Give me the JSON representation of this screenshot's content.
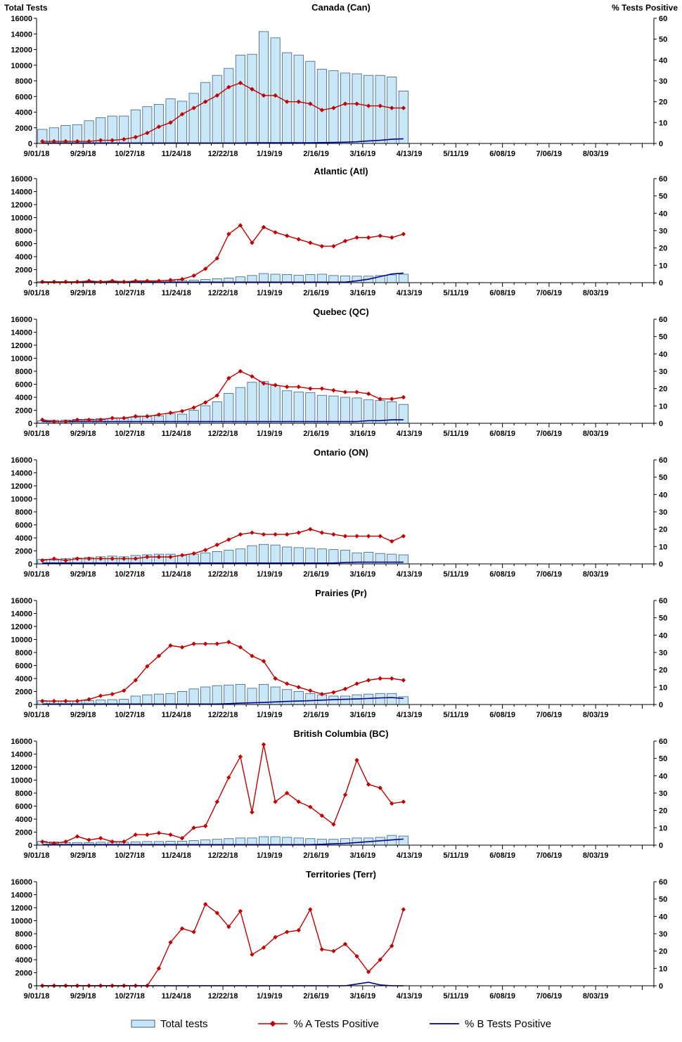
{
  "legend": {
    "total_tests": "Total tests",
    "pct_a": "% A Tests Positive",
    "pct_b": "% B Tests Positive"
  },
  "colors": {
    "bar_fill": "#c9e7f7",
    "bar_stroke": "#3a6186",
    "line_a": "#c00000",
    "line_b": "#00008b",
    "axis": "#000000"
  },
  "chart_data": {
    "type": "combo-bar-line",
    "x_total_slots": 53,
    "x_tick_labels": [
      "9/01/18",
      "9/29/18",
      "10/27/18",
      "11/24/18",
      "12/22/18",
      "1/19/19",
      "2/16/19",
      "3/16/19",
      "4/13/19",
      "5/11/19",
      "6/08/19",
      "7/06/19",
      "8/03/19"
    ],
    "x_week_dates": [
      "9/01/18",
      "9/08/18",
      "9/15/18",
      "9/22/18",
      "9/29/18",
      "10/06/18",
      "10/13/18",
      "10/20/18",
      "10/27/18",
      "11/03/18",
      "11/10/18",
      "11/17/18",
      "11/24/18",
      "12/01/18",
      "12/08/18",
      "12/15/18",
      "12/22/18",
      "12/29/18",
      "1/05/19",
      "1/12/19",
      "1/19/19",
      "1/26/19",
      "2/02/19",
      "2/09/19",
      "2/16/19",
      "2/23/19",
      "3/02/19",
      "3/09/19",
      "3/16/19",
      "3/23/19",
      "3/30/19",
      "4/06/19"
    ],
    "left_axis": {
      "title": "Total Tests",
      "min": 0,
      "max": 16000,
      "tick_step": 2000
    },
    "right_axis": {
      "title": "% Tests Positive",
      "min": 0,
      "max": 60,
      "tick_step": 10
    },
    "charts": [
      {
        "id": "canada",
        "title": "Canada (Can)",
        "series": {
          "total_tests": [
            1800,
            2000,
            2300,
            2400,
            2900,
            3300,
            3500,
            3500,
            4300,
            4700,
            5000,
            5700,
            5400,
            6400,
            7800,
            8700,
            9600,
            11300,
            11400,
            14300,
            13500,
            11600,
            11300,
            10500,
            9500,
            9300,
            9000,
            8900,
            8700,
            8700,
            8500,
            6700
          ],
          "pct_a_positive": [
            1,
            1,
            1,
            1,
            1,
            1.5,
            1.5,
            2,
            3,
            5,
            8,
            10,
            14,
            17,
            20,
            23,
            27,
            29,
            26,
            23,
            23,
            20,
            20,
            19,
            16,
            17,
            19,
            19,
            18,
            18,
            17,
            17
          ],
          "pct_b_positive": [
            0.2,
            0.2,
            0.2,
            0.2,
            0.2,
            0.2,
            0.2,
            0.2,
            0.2,
            0.2,
            0.2,
            0.2,
            0.2,
            0.2,
            0.2,
            0.2,
            0.2,
            0.2,
            0.3,
            0.3,
            0.3,
            0.3,
            0.3,
            0.3,
            0.4,
            0.5,
            0.6,
            0.8,
            1.2,
            1.5,
            2,
            2.2
          ]
        }
      },
      {
        "id": "atlantic",
        "title": "Atlantic (Atl)",
        "series": {
          "total_tests": [
            150,
            150,
            150,
            150,
            180,
            200,
            200,
            200,
            250,
            250,
            300,
            300,
            350,
            400,
            500,
            600,
            700,
            900,
            1100,
            1400,
            1300,
            1250,
            1150,
            1250,
            1300,
            1100,
            1050,
            1000,
            1000,
            1100,
            1200,
            1300
          ],
          "pct_a_positive": [
            0.5,
            0.5,
            0.5,
            0.5,
            1,
            0.5,
            1,
            0.5,
            1,
            1,
            1,
            1.5,
            2,
            4,
            8,
            14,
            28,
            33,
            23,
            32,
            29,
            27,
            25,
            23,
            21,
            21,
            24,
            26,
            26,
            27,
            26,
            28
          ],
          "pct_b_positive": [
            0.3,
            0.3,
            0.3,
            0.3,
            0.3,
            0.3,
            0.3,
            0.3,
            0.3,
            0.3,
            0.3,
            0.3,
            0.3,
            0.3,
            0.3,
            0.3,
            0.3,
            0.3,
            0.3,
            0.3,
            0.3,
            0.3,
            0.3,
            0.3,
            0.3,
            0.3,
            0.3,
            1,
            2,
            3.5,
            5,
            5.5
          ]
        }
      },
      {
        "id": "quebec",
        "title": "Quebec (QC)",
        "series": {
          "total_tests": [
            400,
            450,
            500,
            600,
            650,
            700,
            750,
            750,
            950,
            1050,
            1150,
            1500,
            1400,
            2000,
            2700,
            3300,
            4600,
            5500,
            6300,
            6400,
            5800,
            5000,
            4800,
            4700,
            4300,
            4200,
            4000,
            3900,
            3600,
            3500,
            3300,
            2900
          ],
          "pct_a_positive": [
            2,
            1,
            1,
            2,
            2,
            2,
            3,
            3,
            4,
            4,
            5,
            6,
            7,
            9,
            12,
            16,
            26,
            30,
            27,
            23,
            22,
            21,
            21,
            20,
            20,
            19,
            18,
            18,
            17,
            14,
            14,
            15
          ],
          "pct_b_positive": [
            1,
            1,
            1,
            1,
            1,
            1,
            1,
            1,
            1,
            1,
            1,
            1,
            1,
            1,
            1,
            1,
            1,
            1,
            1,
            1,
            1,
            1,
            1,
            1,
            1,
            1,
            1,
            1,
            1.5,
            1.5,
            2,
            2
          ]
        }
      },
      {
        "id": "ontario",
        "title": "Ontario (ON)",
        "series": {
          "total_tests": [
            700,
            600,
            800,
            900,
            1000,
            1100,
            1200,
            1100,
            1300,
            1400,
            1500,
            1500,
            1300,
            1500,
            1700,
            1900,
            2100,
            2300,
            2800,
            3000,
            2900,
            2600,
            2500,
            2400,
            2300,
            2200,
            2100,
            1700,
            1800,
            1600,
            1500,
            1400
          ],
          "pct_a_positive": [
            2,
            3,
            2,
            3,
            3,
            3,
            3,
            3,
            3,
            4,
            4,
            4,
            5,
            6,
            8,
            11,
            14,
            17,
            18,
            17,
            17,
            17,
            18,
            20,
            18,
            17,
            16,
            16,
            16,
            16,
            13,
            16
          ],
          "pct_b_positive": [
            0.5,
            0.5,
            0.5,
            0.5,
            0.5,
            0.5,
            0.5,
            0.5,
            0.5,
            0.5,
            0.5,
            0.5,
            0.5,
            0.5,
            0.5,
            0.5,
            0.5,
            0.5,
            0.5,
            0.5,
            0.5,
            0.5,
            0.5,
            0.5,
            0.5,
            0.5,
            0.8,
            1,
            1,
            1,
            1,
            1
          ]
        }
      },
      {
        "id": "prairies",
        "title": "Prairies (Pr)",
        "series": {
          "total_tests": [
            600,
            500,
            500,
            550,
            600,
            700,
            750,
            800,
            1300,
            1500,
            1600,
            1700,
            2000,
            2400,
            2700,
            2900,
            3000,
            3100,
            2500,
            3100,
            2700,
            2300,
            2000,
            1700,
            1500,
            1300,
            1300,
            1500,
            1600,
            1700,
            1700,
            1200
          ],
          "pct_a_positive": [
            2,
            2,
            2,
            2,
            3,
            5,
            6,
            8,
            14,
            22,
            28,
            34,
            33,
            35,
            35,
            35,
            36,
            33,
            28,
            25,
            15,
            12,
            10,
            8,
            6,
            7,
            9,
            12,
            14,
            15,
            15,
            14
          ],
          "pct_b_positive": [
            0.3,
            0.3,
            0.3,
            0.3,
            0.3,
            0.3,
            0.3,
            0.3,
            0.3,
            0.3,
            0.3,
            0.3,
            0.3,
            0.3,
            0.3,
            0.3,
            0.5,
            0.8,
            1,
            1.2,
            1.5,
            1.8,
            2,
            2.2,
            2.5,
            2.8,
            3,
            3.2,
            3.5,
            3.8,
            4,
            3.5
          ]
        }
      },
      {
        "id": "british-columbia",
        "title": "British Columbia (BC)",
        "series": {
          "total_tests": [
            600,
            500,
            400,
            400,
            400,
            450,
            450,
            450,
            500,
            550,
            550,
            600,
            600,
            700,
            800,
            900,
            1000,
            1100,
            1100,
            1300,
            1300,
            1200,
            1100,
            1000,
            900,
            900,
            1000,
            1100,
            1100,
            1200,
            1500,
            1400
          ],
          "pct_a_positive": [
            2,
            1,
            2,
            5,
            3,
            4,
            2,
            2,
            6,
            6,
            7,
            6,
            4,
            10,
            11,
            25,
            39,
            51,
            19,
            58,
            25,
            30,
            25,
            22,
            17,
            12,
            29,
            49,
            35,
            33,
            24,
            25
          ],
          "pct_b_positive": [
            0.3,
            0.3,
            0.3,
            0.3,
            0.3,
            0.3,
            0.3,
            0.3,
            0.3,
            0.3,
            0.3,
            0.3,
            0.3,
            0.3,
            0.3,
            0.3,
            0.3,
            0.3,
            0.3,
            0.3,
            0.3,
            0.3,
            0.3,
            0.3,
            0.5,
            0.8,
            1,
            1.5,
            2,
            2.5,
            3,
            3.5
          ]
        }
      },
      {
        "id": "territories",
        "title": "Territories (Terr)",
        "series": {
          "total_tests": [
            10,
            10,
            10,
            10,
            10,
            10,
            10,
            10,
            10,
            10,
            20,
            20,
            30,
            30,
            30,
            30,
            30,
            30,
            30,
            30,
            30,
            30,
            30,
            30,
            20,
            20,
            20,
            20,
            20,
            20,
            20,
            20
          ],
          "pct_a_positive": [
            0,
            0,
            0,
            0,
            0,
            0,
            0,
            0,
            0,
            0,
            10,
            25,
            33,
            31,
            47,
            42,
            34,
            43,
            18,
            22,
            28,
            31,
            32,
            44,
            21,
            20,
            24,
            17,
            8,
            15,
            23,
            44
          ],
          "pct_b_positive": [
            0,
            0,
            0,
            0,
            0,
            0,
            0,
            0,
            0,
            0,
            0,
            0,
            0,
            0,
            0,
            0,
            0,
            0,
            0,
            0,
            0,
            0,
            0,
            0,
            0,
            0,
            0,
            1,
            2,
            0.5,
            0,
            0
          ]
        }
      }
    ]
  }
}
